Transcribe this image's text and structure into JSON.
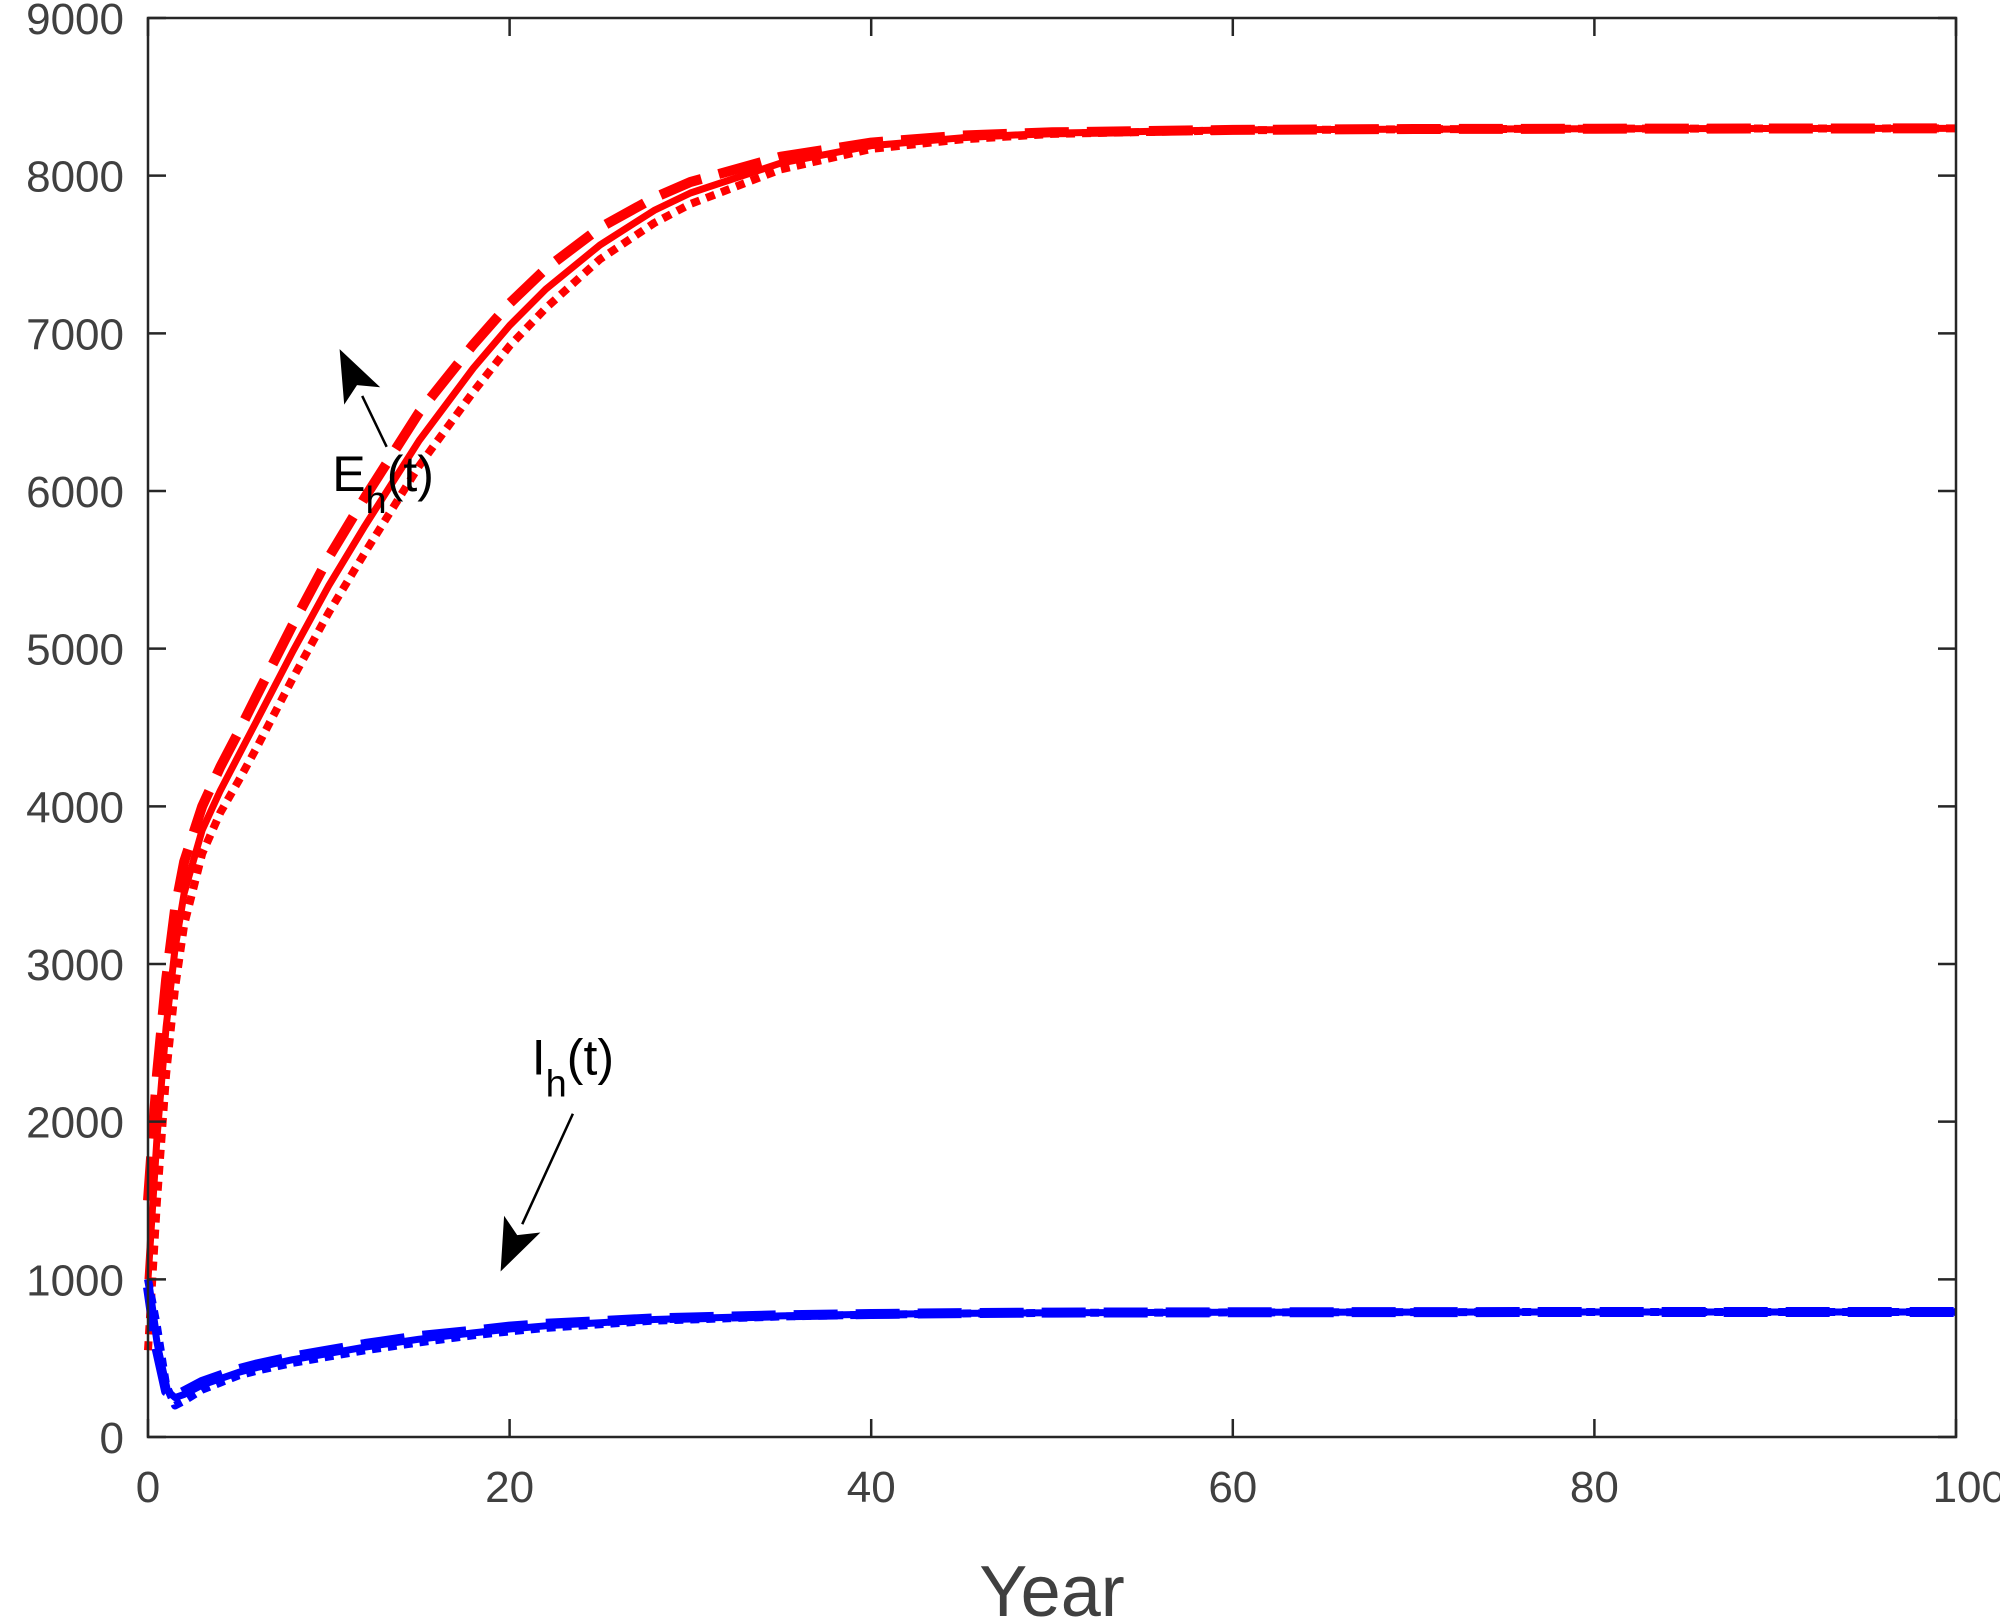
{
  "chart_data": {
    "type": "line",
    "title": "",
    "xlabel": "Year",
    "ylabel": "",
    "xlim": [
      0,
      100
    ],
    "ylim": [
      0,
      9000
    ],
    "xticks": [
      0,
      20,
      40,
      60,
      80,
      100
    ],
    "yticks": [
      0,
      1000,
      2000,
      3000,
      4000,
      5000,
      6000,
      7000,
      8000,
      9000
    ],
    "xtick_labels": [
      "0",
      "20",
      "40",
      "60",
      "80",
      "100"
    ],
    "ytick_labels": [
      "0",
      "1000",
      "2000",
      "3000",
      "4000",
      "5000",
      "6000",
      "7000",
      "8000",
      "9000"
    ],
    "grid": false,
    "x": [
      0,
      0.5,
      1,
      1.5,
      2,
      3,
      4,
      5,
      6,
      8,
      10,
      12,
      15,
      18,
      20,
      22,
      25,
      28,
      30,
      35,
      40,
      45,
      50,
      60,
      70,
      80,
      90,
      100
    ],
    "series": [
      {
        "name": "E_h solid",
        "color": "#ff0000",
        "style": "solid",
        "values": [
          1000,
          1900,
          2600,
          3100,
          3450,
          3850,
          4100,
          4320,
          4540,
          4980,
          5400,
          5780,
          6320,
          6780,
          7050,
          7280,
          7560,
          7780,
          7890,
          8080,
          8190,
          8240,
          8270,
          8290,
          8295,
          8298,
          8299,
          8300
        ]
      },
      {
        "name": "E_h dashed",
        "color": "#ff0000",
        "style": "dashed",
        "values": [
          1500,
          2300,
          2900,
          3350,
          3650,
          4000,
          4250,
          4470,
          4700,
          5150,
          5580,
          5960,
          6500,
          6930,
          7190,
          7410,
          7670,
          7860,
          7960,
          8120,
          8210,
          8255,
          8275,
          8290,
          8296,
          8298,
          8299,
          8300
        ]
      },
      {
        "name": "E_h dotted",
        "color": "#ff0000",
        "style": "dotted",
        "values": [
          550,
          1500,
          2300,
          2850,
          3250,
          3700,
          3960,
          4160,
          4370,
          4810,
          5230,
          5610,
          6160,
          6630,
          6920,
          7160,
          7470,
          7700,
          7820,
          8040,
          8170,
          8230,
          8265,
          8288,
          8295,
          8298,
          8299,
          8300
        ]
      },
      {
        "name": "I_h solid",
        "color": "#0000ff",
        "style": "solid",
        "values": [
          1000,
          600,
          300,
          250,
          270,
          330,
          370,
          410,
          440,
          490,
          530,
          570,
          620,
          660,
          685,
          705,
          725,
          745,
          752,
          768,
          778,
          784,
          788,
          791,
          792,
          793,
          793,
          793
        ]
      },
      {
        "name": "I_h dashed",
        "color": "#0000ff",
        "style": "dashed",
        "values": [
          950,
          550,
          290,
          260,
          290,
          350,
          390,
          430,
          460,
          510,
          550,
          590,
          640,
          675,
          700,
          718,
          735,
          752,
          758,
          772,
          780,
          786,
          789,
          791,
          792,
          793,
          793,
          793
        ]
      },
      {
        "name": "I_h dotted",
        "color": "#0000ff",
        "style": "dotted",
        "values": [
          1000,
          700,
          330,
          200,
          230,
          300,
          345,
          390,
          420,
          470,
          510,
          550,
          600,
          645,
          670,
          692,
          715,
          738,
          745,
          764,
          776,
          783,
          787,
          790,
          792,
          793,
          793,
          793
        ]
      }
    ],
    "annotations": [
      {
        "label": "E",
        "subscript": "h",
        "suffix": "(t)",
        "text_at": [
          13,
          6000
        ],
        "arrow_from": [
          13.2,
          6280
        ],
        "arrow_to": [
          10.6,
          6900
        ]
      },
      {
        "label": "I",
        "subscript": "h",
        "suffix": "(t)",
        "text_at": [
          23.5,
          2300
        ],
        "arrow_from": [
          23.5,
          2050
        ],
        "arrow_to": [
          19.5,
          1050
        ]
      }
    ]
  }
}
